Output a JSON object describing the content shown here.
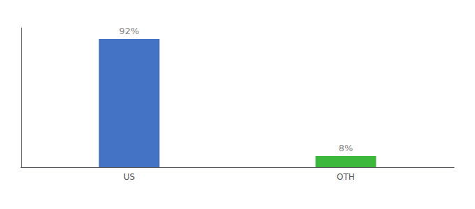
{
  "chart_data": {
    "type": "bar",
    "categories": [
      "US",
      "OTH"
    ],
    "values": [
      92,
      8
    ],
    "value_labels": [
      "92%",
      "8%"
    ],
    "colors": [
      "#4472C4",
      "#3CB93C"
    ],
    "ylim": [
      0,
      100
    ],
    "grid": false,
    "data_labels": true,
    "tick_labels": "x"
  }
}
